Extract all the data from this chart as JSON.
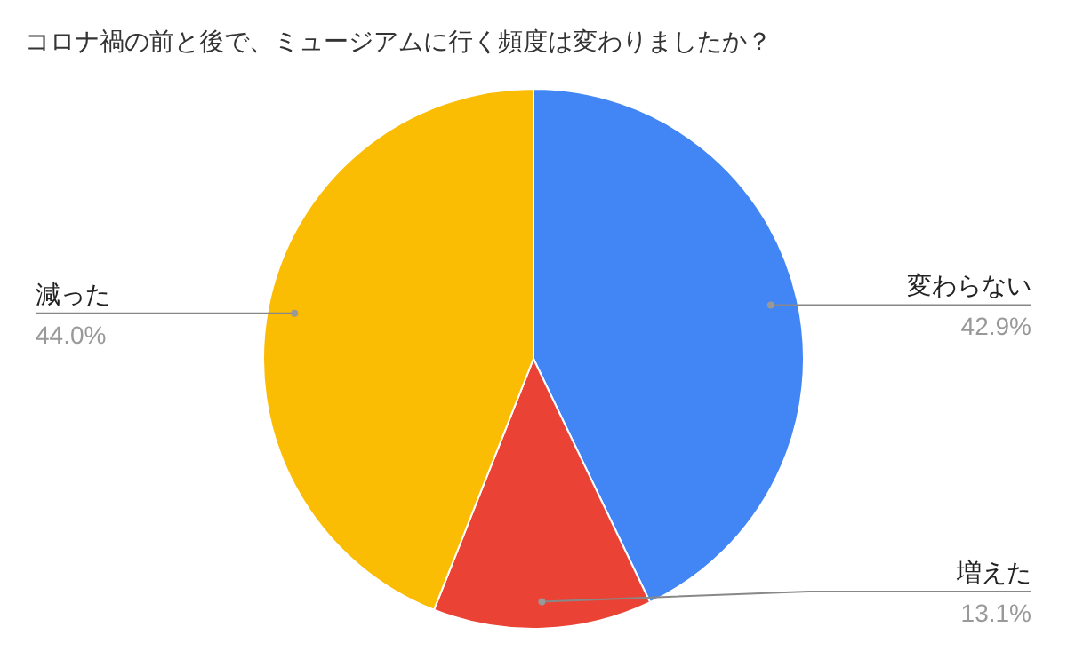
{
  "chart_data": {
    "type": "pie",
    "title": "コロナ禍の前と後で、ミュージアムに行く頻度は変わりましたか？",
    "categories": [
      "変わらない",
      "増えた",
      "減った"
    ],
    "values": [
      42.9,
      13.1,
      44.0
    ],
    "colors": [
      "#4285f4",
      "#ea4335",
      "#fbbc04"
    ],
    "value_labels": [
      "42.9%",
      "13.1%",
      "44.0%"
    ]
  }
}
